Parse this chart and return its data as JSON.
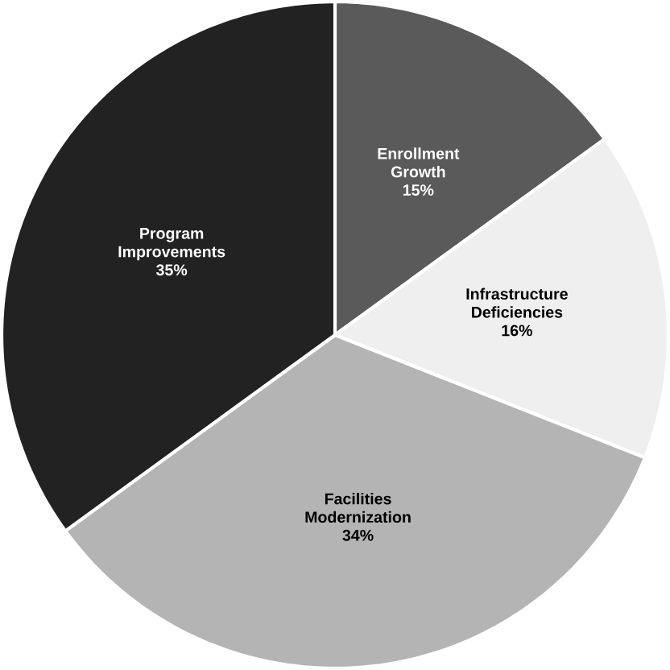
{
  "chart_data": {
    "type": "pie",
    "categories": [
      "Enrollment Growth",
      "Infrastructure Deficiencies",
      "Facilities Modernization",
      "Program Improvements"
    ],
    "values": [
      15,
      16,
      34,
      35
    ],
    "value_labels": [
      "15%",
      "16%",
      "34%",
      "35%"
    ],
    "colors": [
      "#5a5a5a",
      "#efefef",
      "#b4b4b4",
      "#222222"
    ]
  }
}
